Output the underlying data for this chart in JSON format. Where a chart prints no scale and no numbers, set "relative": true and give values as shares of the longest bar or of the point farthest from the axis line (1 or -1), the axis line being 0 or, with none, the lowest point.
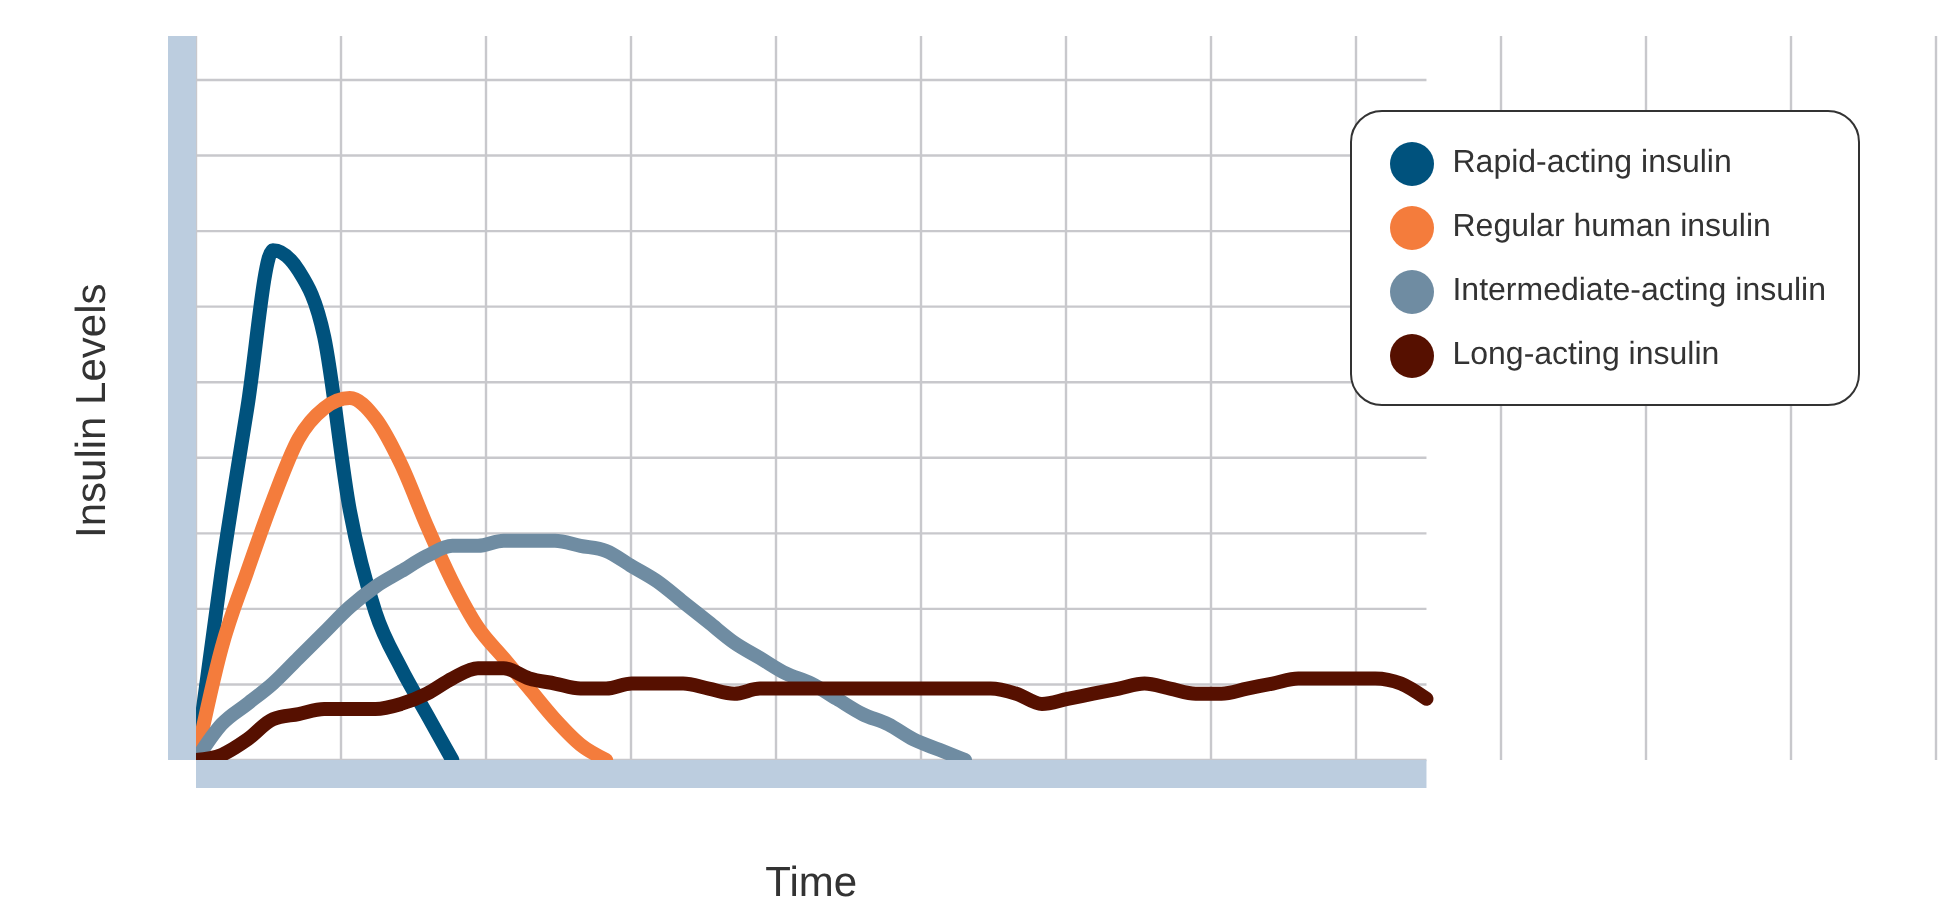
{
  "chart_data": {
    "type": "line",
    "relative": true,
    "xlabel": "Time",
    "ylabel": "Insulin Levels",
    "grid": true,
    "legend": "top right",
    "marker": "none",
    "line_style": "solid",
    "categories": [
      null,
      null,
      null,
      null,
      null,
      null,
      null,
      null,
      null,
      null,
      null,
      null,
      null,
      null,
      null,
      null,
      null,
      null,
      null,
      null,
      null,
      null,
      null,
      null,
      null,
      null,
      null,
      null,
      null,
      null,
      null,
      null,
      null,
      null,
      null,
      null,
      null,
      null,
      null,
      null,
      null,
      null,
      null,
      null,
      null,
      null,
      null,
      null,
      null
    ],
    "series": [
      {
        "name": "Rapid-acting insulin",
        "color": "#00527d",
        "values": [
          0,
          0.37,
          0.69,
          1.0,
          0.96,
          0.83,
          0.49,
          0.29,
          0.18,
          0.09,
          0,
          null,
          null,
          null,
          null,
          null,
          null,
          null,
          null,
          null,
          null,
          null,
          null,
          null,
          null,
          null,
          null,
          null,
          null,
          null,
          null,
          null,
          null,
          null,
          null,
          null,
          null,
          null,
          null,
          null,
          null,
          null,
          null,
          null,
          null,
          null,
          null,
          null,
          null
        ]
      },
      {
        "name": "Regular human insulin",
        "color": "#f47c3c",
        "values": [
          0,
          0.22,
          0.37,
          0.51,
          0.63,
          0.69,
          0.71,
          0.67,
          0.58,
          0.46,
          0.35,
          0.26,
          0.2,
          0.14,
          0.08,
          0.03,
          0,
          null,
          null,
          null,
          null,
          null,
          null,
          null,
          null,
          null,
          null,
          null,
          null,
          null,
          null,
          null,
          null,
          null,
          null,
          null,
          null,
          null,
          null,
          null,
          null,
          null,
          null,
          null,
          null,
          null,
          null,
          null,
          null
        ]
      },
      {
        "name": "Intermediate-acting insulin",
        "color": "#6f8ca2",
        "values": [
          0,
          0.07,
          0.11,
          0.15,
          0.2,
          0.25,
          0.3,
          0.34,
          0.37,
          0.4,
          0.42,
          0.42,
          0.43,
          0.43,
          0.43,
          0.42,
          0.41,
          0.38,
          0.35,
          0.31,
          0.27,
          0.23,
          0.2,
          0.17,
          0.15,
          0.12,
          0.09,
          0.07,
          0.04,
          0.02,
          0,
          null,
          null,
          null,
          null,
          null,
          null,
          null,
          null,
          null,
          null,
          null,
          null,
          null,
          null,
          null,
          null,
          null,
          null
        ]
      },
      {
        "name": "Long-acting insulin",
        "color": "#561000",
        "values": [
          0,
          0.01,
          0.04,
          0.08,
          0.09,
          0.1,
          0.1,
          0.1,
          0.11,
          0.13,
          0.16,
          0.18,
          0.18,
          0.16,
          0.15,
          0.14,
          0.14,
          0.15,
          0.15,
          0.15,
          0.14,
          0.13,
          0.14,
          0.14,
          0.14,
          0.14,
          0.14,
          0.14,
          0.14,
          0.14,
          0.14,
          0.14,
          0.13,
          0.11,
          0.12,
          0.13,
          0.14,
          0.15,
          0.14,
          0.13,
          0.13,
          0.14,
          0.15,
          0.16,
          0.16,
          0.16,
          0.16,
          0.15,
          0.12
        ]
      }
    ]
  }
}
